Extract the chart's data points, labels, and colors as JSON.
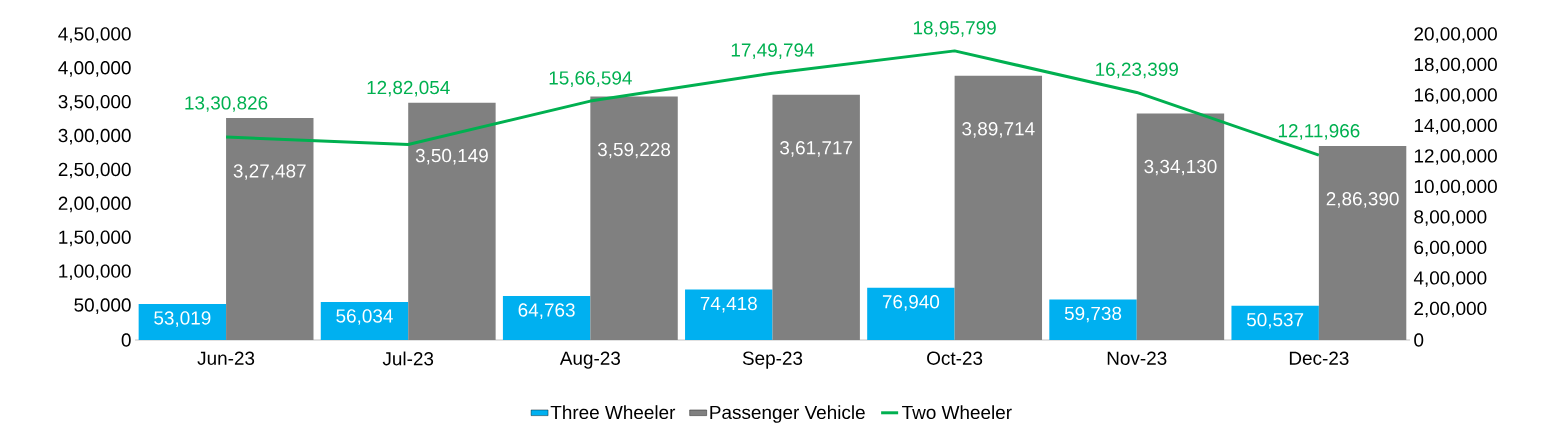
{
  "chart_data": {
    "type": "bar",
    "categories": [
      "Jun-23",
      "Jul-23",
      "Aug-23",
      "Sep-23",
      "Oct-23",
      "Nov-23",
      "Dec-23"
    ],
    "series": [
      {
        "name": "Three Wheeler",
        "color": "#00b0f0",
        "values": [
          53019,
          56034,
          64763,
          74418,
          76940,
          59738,
          50537
        ],
        "value_labels": [
          "53,019",
          "56,034",
          "64,763",
          "74,418",
          "76,940",
          "59,738",
          "50,537"
        ]
      },
      {
        "name": "Passenger Vehicle",
        "color": "#808080",
        "values": [
          327487,
          350149,
          359228,
          361717,
          389714,
          334130,
          286390
        ],
        "value_labels": [
          "3,27,487",
          "3,50,149",
          "3,59,228",
          "3,61,717",
          "3,89,714",
          "3,34,130",
          "2,86,390"
        ]
      },
      {
        "name": "Two Wheeler",
        "type": "line",
        "axis": "y2",
        "color": "#00b050",
        "values": [
          1330826,
          1282054,
          1566594,
          1749794,
          1895799,
          1623399,
          1211966
        ],
        "value_labels": [
          "13,30,826",
          "12,82,054",
          "15,66,594",
          "17,49,794",
          "18,95,799",
          "16,23,399",
          "12,11,966"
        ]
      }
    ],
    "ylim": [
      0,
      450000
    ],
    "yticks": [
      0,
      {
        "value": 50000,
        "label": "50,000"
      },
      {
        "value": 100000,
        "label": "1,00,000"
      },
      {
        "value": 150000,
        "label": "1,50,000"
      },
      {
        "value": 200000,
        "label": "2,00,000"
      },
      {
        "value": 250000,
        "label": "2,50,000"
      },
      {
        "value": 300000,
        "label": "3,00,000"
      },
      {
        "value": 350000,
        "label": "3,50,000"
      },
      {
        "value": 400000,
        "label": "4,00,000"
      },
      {
        "value": 450000,
        "label": "4,50,000"
      }
    ],
    "y2lim": [
      0,
      2000000
    ],
    "y2ticks": [
      0,
      {
        "value": 200000,
        "label": "2,00,000"
      },
      {
        "value": 400000,
        "label": "4,00,000"
      },
      {
        "value": 600000,
        "label": "6,00,000"
      },
      {
        "value": 800000,
        "label": "8,00,000"
      },
      {
        "value": 1000000,
        "label": "10,00,000"
      },
      {
        "value": 1200000,
        "label": "12,00,000"
      },
      {
        "value": 1400000,
        "label": "14,00,000"
      },
      {
        "value": 1600000,
        "label": "16,00,000"
      },
      {
        "value": 1800000,
        "label": "18,00,000"
      },
      {
        "value": 2000000,
        "label": "20,00,000"
      }
    ],
    "legend": "bottom",
    "marker": "none"
  }
}
